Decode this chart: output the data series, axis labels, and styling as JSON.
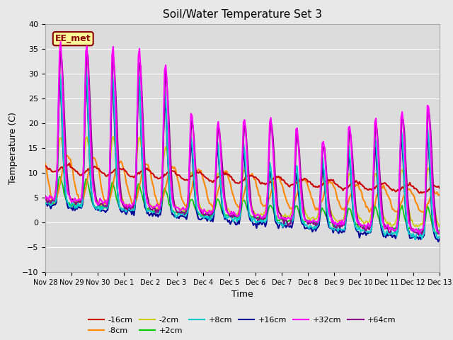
{
  "title": "Soil/Water Temperature Set 3",
  "xlabel": "Time",
  "ylabel": "Temperature (C)",
  "ylim": [
    -10,
    40
  ],
  "xlim": [
    0,
    360
  ],
  "background_color": "#e8e8e8",
  "plot_bg_color": "#dcdcdc",
  "annotation_text": "EE_met",
  "annotation_box_color": "#ffff99",
  "annotation_border_color": "#8b0000",
  "x_tick_labels": [
    "Nov 28",
    "Nov 29",
    "Nov 30",
    "Dec 1",
    "Dec 2",
    "Dec 3",
    "Dec 4",
    "Dec 5",
    "Dec 6",
    "Dec 7",
    "Dec 8",
    "Dec 9",
    "Dec 10",
    "Dec 11",
    "Dec 12",
    "Dec 13"
  ],
  "colors": {
    "-16cm": "#cc0000",
    "-8cm": "#ff8800",
    "-2cm": "#cccc00",
    "+2cm": "#00cc00",
    "+8cm": "#00cccc",
    "+16cm": "#000099",
    "+32cm": "#ff00ff",
    "+64cm": "#880088"
  }
}
